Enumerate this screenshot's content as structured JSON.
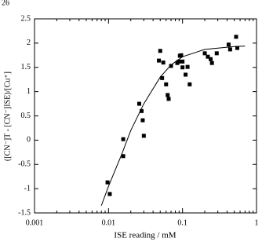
{
  "page_number": "26",
  "chart_data": {
    "type": "scatter",
    "xlabel": "ISE reading / mM",
    "ylabel": "([CN⁻]T - [CN⁻]ISE)/[Cu⁺]",
    "xlog": true,
    "xlim": [
      0.001,
      1
    ],
    "xticks": [
      0.001,
      0.01,
      0.1,
      1
    ],
    "ylim": [
      -1.5,
      2.5
    ],
    "yticks": [
      -1.5,
      -1,
      -0.5,
      0,
      0.5,
      1,
      1.5,
      2,
      2.5
    ],
    "color": "#000000",
    "x": [
      0.0097,
      0.0104,
      0.0158,
      0.0158,
      0.026,
      0.028,
      0.029,
      0.03,
      0.048,
      0.05,
      0.055,
      0.053,
      0.06,
      0.063,
      0.065,
      0.07,
      0.085,
      0.089,
      0.092,
      0.096,
      0.1,
      0.1,
      0.11,
      0.117,
      0.125,
      0.2,
      0.22,
      0.24,
      0.25,
      0.29,
      0.42,
      0.44,
      0.53,
      0.55
    ],
    "y": [
      -0.87,
      -1.11,
      0.02,
      -0.33,
      0.75,
      0.6,
      0.41,
      0.09,
      1.64,
      1.84,
      1.6,
      1.28,
      1.15,
      0.93,
      0.85,
      1.53,
      1.59,
      1.62,
      1.74,
      1.75,
      1.5,
      1.62,
      1.35,
      1.51,
      1.15,
      1.79,
      1.72,
      1.67,
      1.59,
      1.79,
      1.97,
      1.87,
      2.13,
      1.9
    ],
    "fit": {
      "x": [
        0.008,
        0.01,
        0.015,
        0.02,
        0.03,
        0.05,
        0.07,
        0.1,
        0.2,
        0.5,
        0.7
      ],
      "values": [
        -1.35,
        -0.95,
        -0.3,
        0.2,
        0.75,
        1.3,
        1.55,
        1.72,
        1.87,
        1.93,
        1.94
      ]
    }
  }
}
